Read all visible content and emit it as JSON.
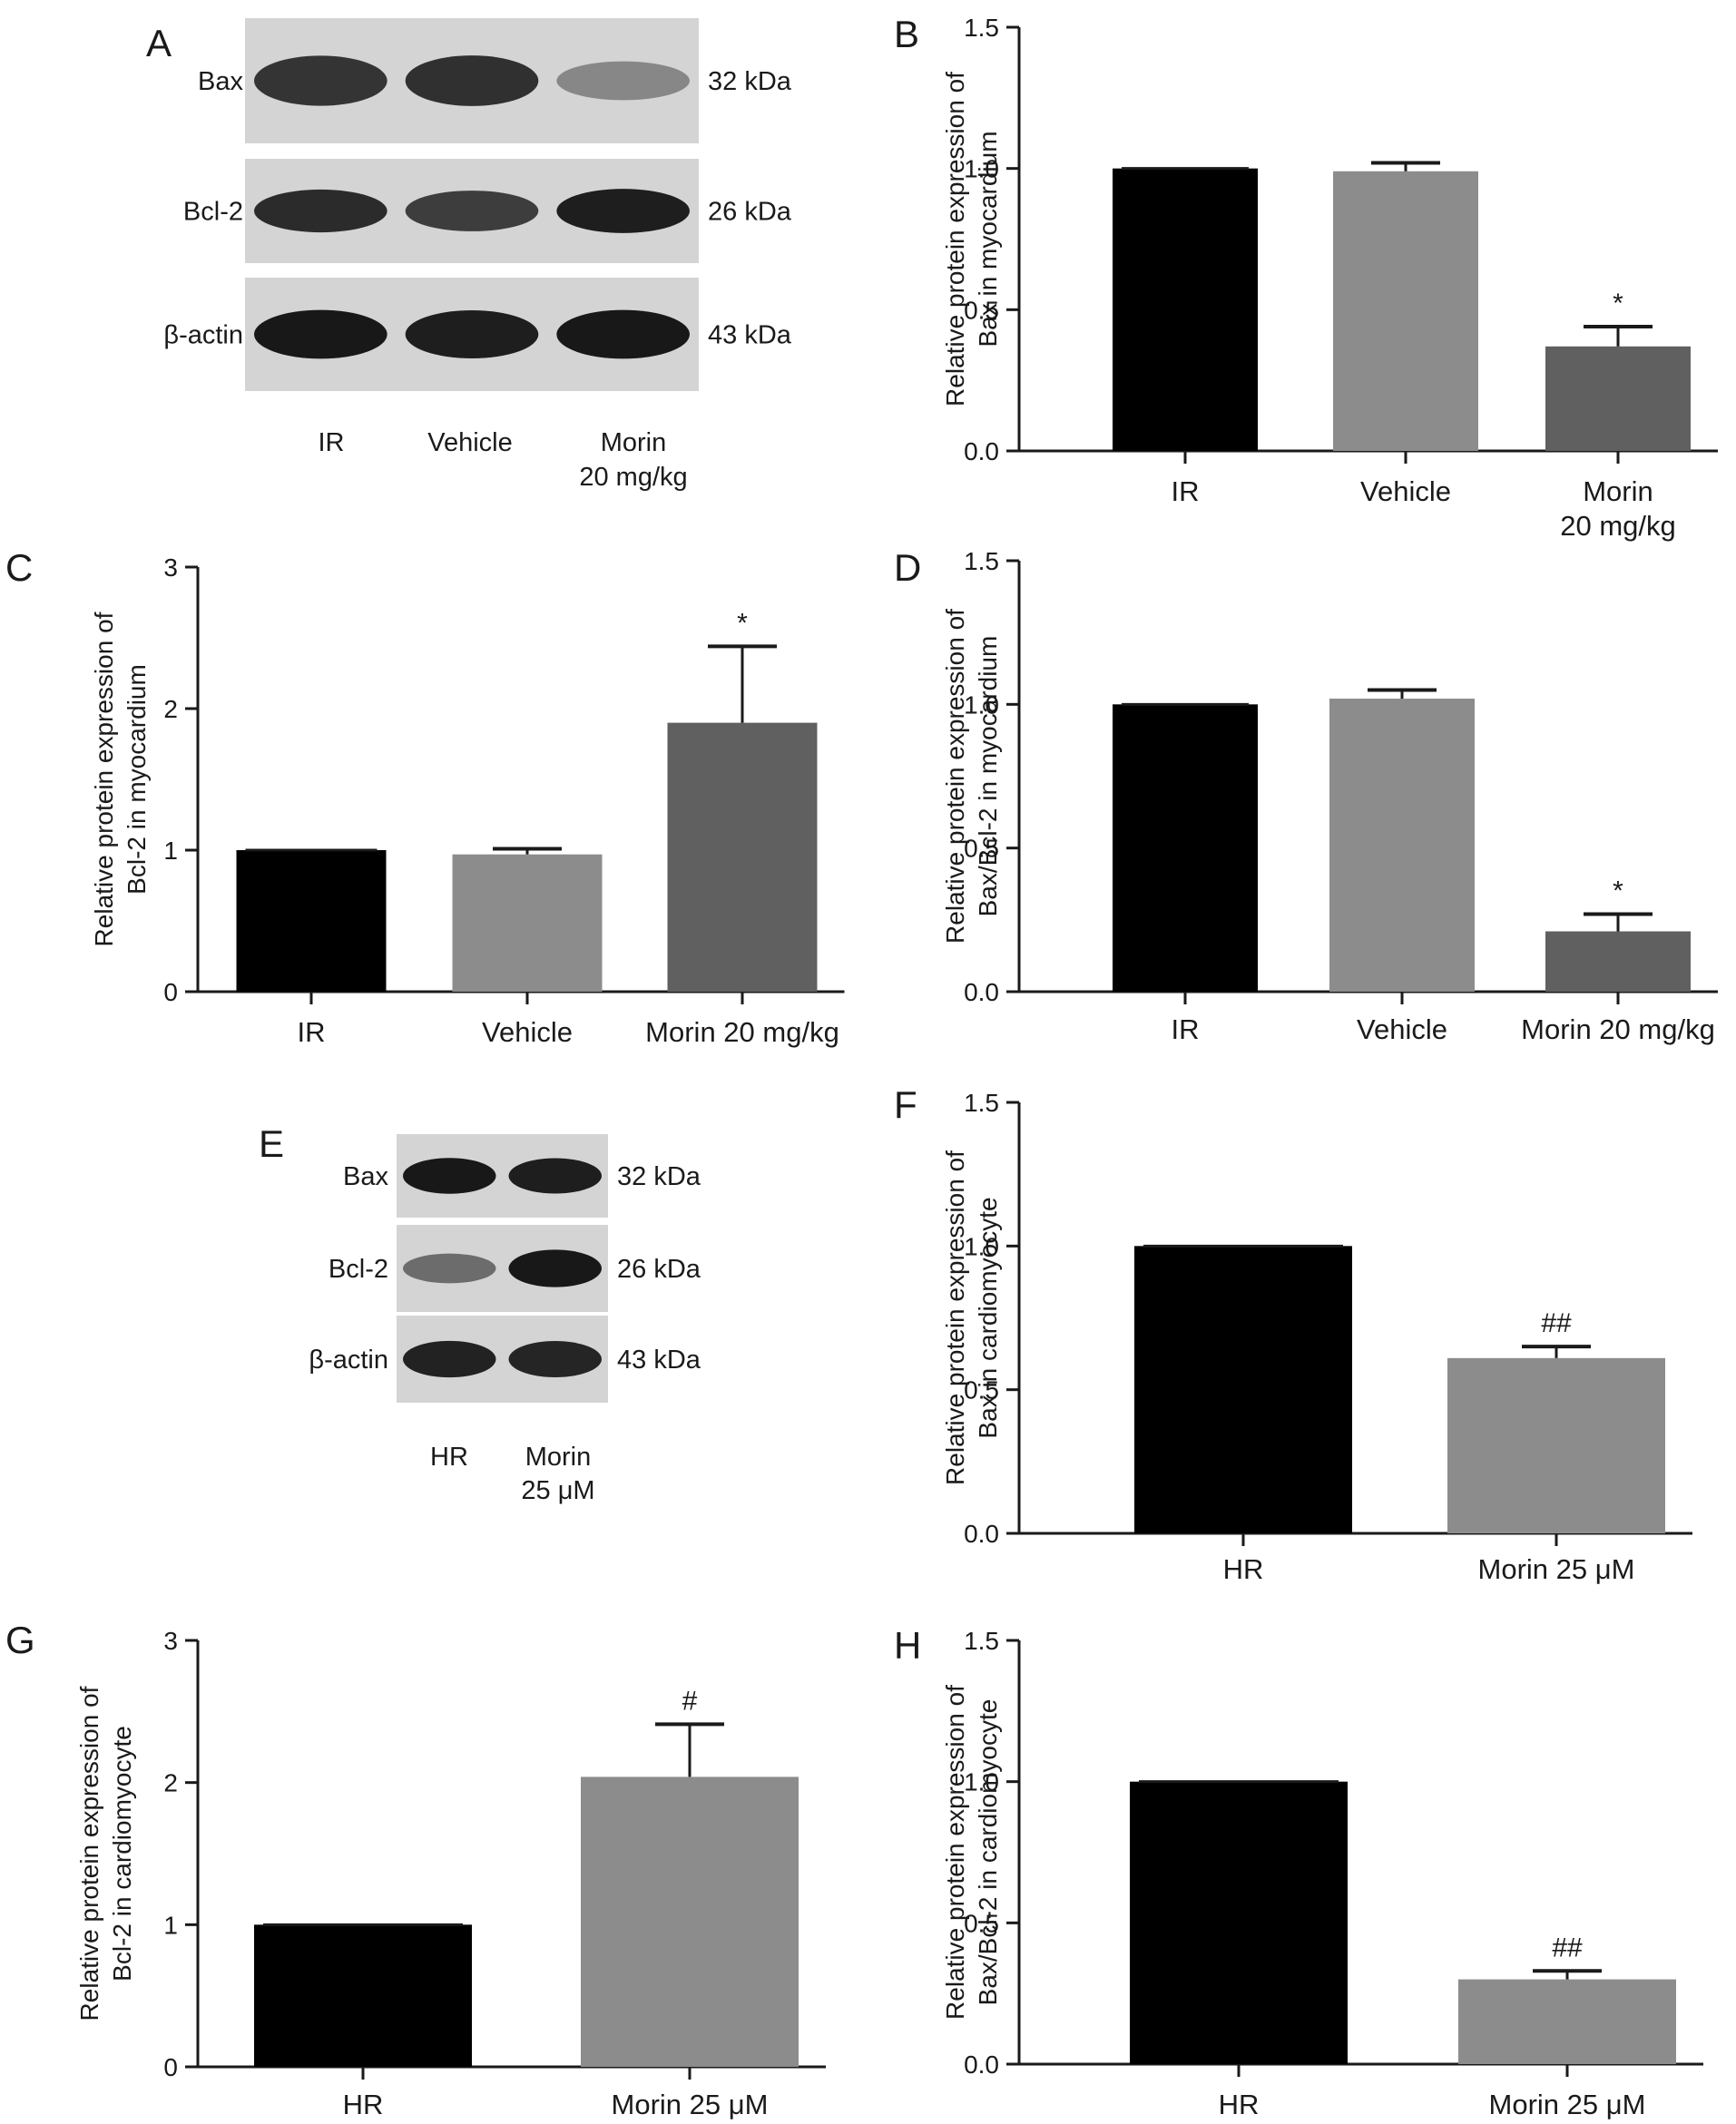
{
  "colors": {
    "black_bar": "#000000",
    "light_bar": "#8c8c8c",
    "dark_bar": "#606060",
    "axis": "#1a1a1a"
  },
  "blots": {
    "A": {
      "letter": "A",
      "bands": [
        "Bax",
        "Bcl-2",
        "β-actin"
      ],
      "sizes": [
        "32 kDa",
        "26 kDa",
        "43 kDa"
      ],
      "lanes": [
        "IR",
        "Vehicle",
        "Morin\n20 mg/kg"
      ],
      "intensity": [
        [
          0.8,
          0.82,
          0.35
        ],
        [
          0.85,
          0.75,
          0.92
        ],
        [
          0.95,
          0.92,
          0.95
        ]
      ]
    },
    "E": {
      "letter": "E",
      "bands": [
        "Bax",
        "Bcl-2",
        "β-actin"
      ],
      "sizes": [
        "32 kDa",
        "26 kDa",
        "43 kDa"
      ],
      "lanes": [
        "HR",
        "Morin\n25 μM"
      ],
      "intensity": [
        [
          0.95,
          0.92
        ],
        [
          0.5,
          0.95
        ],
        [
          0.9,
          0.88
        ]
      ]
    }
  },
  "chart_data": [
    {
      "panel": "B",
      "type": "bar",
      "categories": [
        "IR",
        "Vehicle",
        "Morin\n20 mg/kg"
      ],
      "values": [
        1.0,
        0.99,
        0.37
      ],
      "errors": [
        0,
        0.03,
        0.07
      ],
      "significance": [
        "",
        "",
        "*"
      ],
      "ylabel": [
        "Relative protein expression of",
        "Bax in myocardium"
      ],
      "ylim": [
        0,
        1.5
      ],
      "yticks": [
        "0.0",
        "0.5",
        "1.0",
        "1.5"
      ],
      "colors": [
        "#000000",
        "#8c8c8c",
        "#606060"
      ]
    },
    {
      "panel": "C",
      "type": "bar",
      "categories": [
        "IR",
        "Vehicle",
        "Morin 20 mg/kg"
      ],
      "values": [
        1.0,
        0.97,
        1.9
      ],
      "errors": [
        0,
        0.04,
        0.54
      ],
      "significance": [
        "",
        "",
        "*"
      ],
      "ylabel": [
        "Relative protein expression of",
        "Bcl-2 in myocardium"
      ],
      "ylim": [
        0,
        3
      ],
      "yticks": [
        "0",
        "1",
        "2",
        "3"
      ],
      "colors": [
        "#000000",
        "#8c8c8c",
        "#606060"
      ]
    },
    {
      "panel": "D",
      "type": "bar",
      "categories": [
        "IR",
        "Vehicle",
        "Morin 20 mg/kg"
      ],
      "values": [
        1.0,
        1.02,
        0.21
      ],
      "errors": [
        0,
        0.03,
        0.06
      ],
      "significance": [
        "",
        "",
        "*"
      ],
      "ylabel": [
        "Relative protein expression of",
        "Bax/Bcl-2 in myocardium"
      ],
      "ylim": [
        0,
        1.5
      ],
      "yticks": [
        "0.0",
        "0.5",
        "1.0",
        "1.5"
      ],
      "colors": [
        "#000000",
        "#8c8c8c",
        "#606060"
      ]
    },
    {
      "panel": "F",
      "type": "bar",
      "categories": [
        "HR",
        "Morin 25 μM"
      ],
      "values": [
        1.0,
        0.61
      ],
      "errors": [
        0,
        0.04
      ],
      "significance": [
        "",
        "##"
      ],
      "ylabel": [
        "Relative protein expression of",
        "Bax in cardiomyocyte"
      ],
      "ylim": [
        0,
        1.5
      ],
      "yticks": [
        "0.0",
        "0.5",
        "1.0",
        "1.5"
      ],
      "colors": [
        "#000000",
        "#8c8c8c"
      ]
    },
    {
      "panel": "G",
      "type": "bar",
      "categories": [
        "HR",
        "Morin 25 μM"
      ],
      "values": [
        1.0,
        2.04
      ],
      "errors": [
        0,
        0.37
      ],
      "significance": [
        "",
        "#"
      ],
      "ylabel": [
        "Relative protein expression of",
        "Bcl-2 in cardiomyocyte"
      ],
      "ylim": [
        0,
        3
      ],
      "yticks": [
        "0",
        "1",
        "2",
        "3"
      ],
      "colors": [
        "#000000",
        "#8c8c8c"
      ]
    },
    {
      "panel": "H",
      "type": "bar",
      "categories": [
        "HR",
        "Morin 25 μM"
      ],
      "values": [
        1.0,
        0.3
      ],
      "errors": [
        0,
        0.03
      ],
      "significance": [
        "",
        "##"
      ],
      "ylabel": [
        "Relative protein expression of",
        "Bax/Bcl-2 in cardiomyocyte"
      ],
      "ylim": [
        0,
        1.5
      ],
      "yticks": [
        "0.0",
        "0.5",
        "1.0",
        "1.5"
      ],
      "colors": [
        "#000000",
        "#8c8c8c"
      ]
    }
  ]
}
